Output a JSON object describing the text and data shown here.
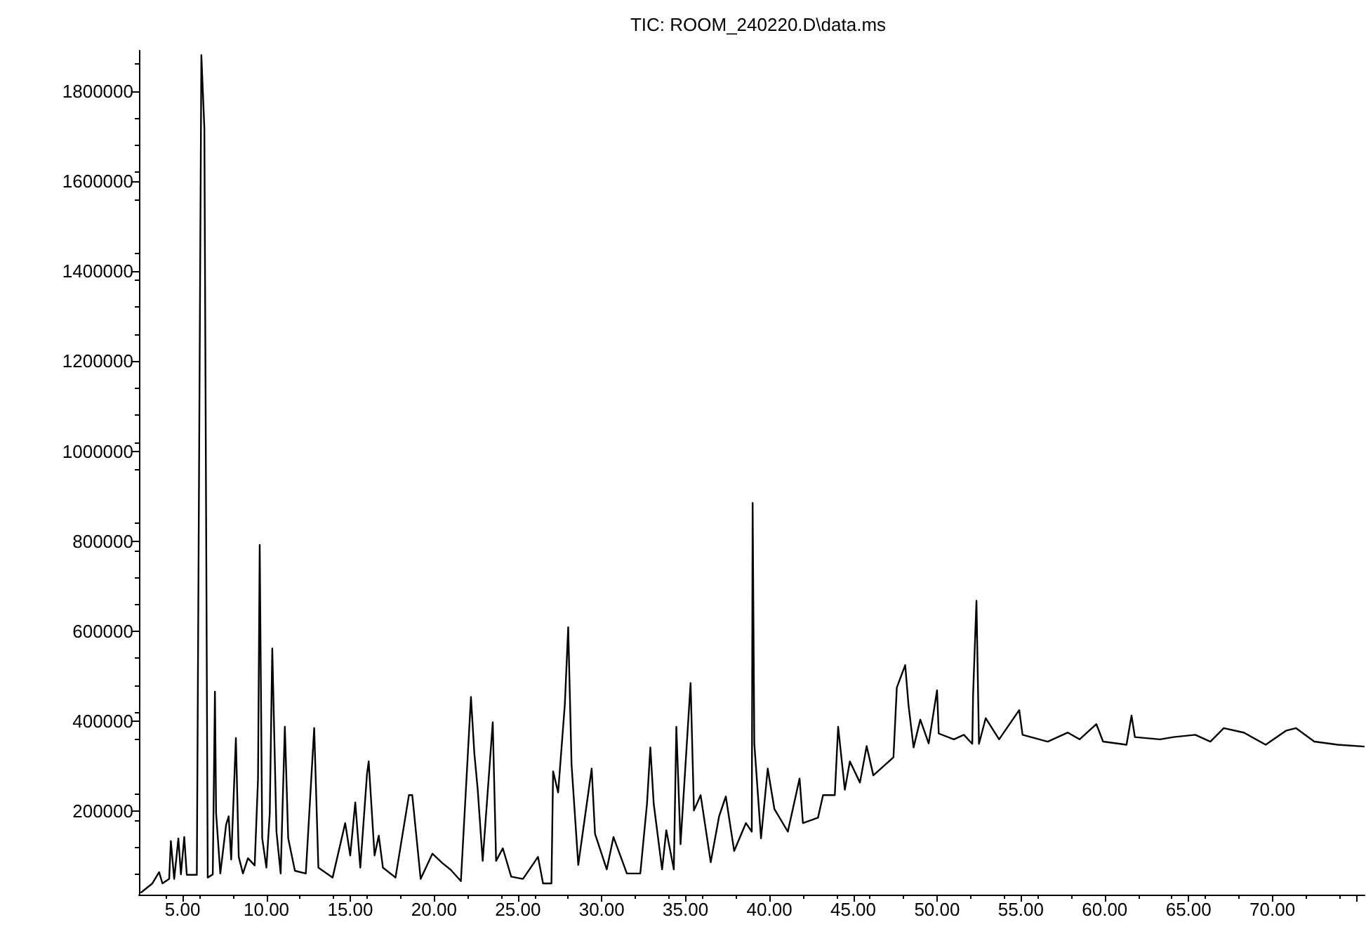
{
  "chart_data": {
    "type": "line",
    "title": "TIC: ROOM_240220.D\\data.ms",
    "marker": "none",
    "xlim": [
      2.4,
      75.5
    ],
    "xticks": [
      {
        "value": 5,
        "label": "5.00"
      },
      {
        "value": 10,
        "label": "10.00"
      },
      {
        "value": 15,
        "label": "15.00"
      },
      {
        "value": 20,
        "label": "20.00"
      },
      {
        "value": 25,
        "label": "25.00"
      },
      {
        "value": 30,
        "label": "30.00"
      },
      {
        "value": 35,
        "label": "35.00"
      },
      {
        "value": 40,
        "label": "40.00"
      },
      {
        "value": 45,
        "label": "45.00"
      },
      {
        "value": 50,
        "label": "50.00"
      },
      {
        "value": 55,
        "label": "55.00"
      },
      {
        "value": 60,
        "label": "60.00"
      },
      {
        "value": 65,
        "label": "65.00"
      },
      {
        "value": 70,
        "label": "70.00"
      },
      {
        "value": 75,
        "label": null
      }
    ],
    "ylim": [
      15000,
      1890000
    ],
    "yticks": [
      200000,
      400000,
      600000,
      800000,
      1000000,
      1200000,
      1400000,
      1600000,
      1800000
    ],
    "series": [
      {
        "color": "#000000",
        "x": [
          2.5,
          3.2,
          3.6,
          3.8,
          4.2,
          4.3,
          4.5,
          4.75,
          4.9,
          5.1,
          5.25,
          5.85,
          6.12,
          6.3,
          6.5,
          6.8,
          6.93,
          7.0,
          7.25,
          7.6,
          7.75,
          7.9,
          8.18,
          8.35,
          8.6,
          8.9,
          9.3,
          9.5,
          9.6,
          9.75,
          10.0,
          10.2,
          10.35,
          10.6,
          10.85,
          11.1,
          11.3,
          11.7,
          12.35,
          12.85,
          13.1,
          13.95,
          14.7,
          15.0,
          15.3,
          15.6,
          16.0,
          16.1,
          16.45,
          16.7,
          16.95,
          17.7,
          18.5,
          18.7,
          19.2,
          19.9,
          20.5,
          21.0,
          21.6,
          22.2,
          22.4,
          22.6,
          22.9,
          23.5,
          23.7,
          24.1,
          24.6,
          25.3,
          26.2,
          26.5,
          27.0,
          27.1,
          27.4,
          27.8,
          28.0,
          28.2,
          28.6,
          29.4,
          29.6,
          30.3,
          30.7,
          31.5,
          32.3,
          32.7,
          32.9,
          33.1,
          33.6,
          33.85,
          34.3,
          34.45,
          34.7,
          35.3,
          35.5,
          35.9,
          36.5,
          37.0,
          37.4,
          37.9,
          38.6,
          38.95,
          39.0,
          39.1,
          39.5,
          39.9,
          40.3,
          41.1,
          41.8,
          42.0,
          42.9,
          43.2,
          43.9,
          44.1,
          44.5,
          44.8,
          45.4,
          45.8,
          46.2,
          47.4,
          47.6,
          48.1,
          48.3,
          48.6,
          49.0,
          49.5,
          50.0,
          50.1,
          51.0,
          51.6,
          52.1,
          52.15,
          52.35,
          52.5,
          52.9,
          53.7,
          54.9,
          55.1,
          56.6,
          57.8,
          58.5,
          59.5,
          59.9,
          61.3,
          61.6,
          61.8,
          63.3,
          64.1,
          65.4,
          66.3,
          67.1,
          68.3,
          69.6,
          70.8,
          71.4,
          72.5,
          73.9,
          75.5
        ],
        "values": [
          19000,
          40000,
          65000,
          40000,
          50000,
          134000,
          50000,
          140000,
          60000,
          143000,
          59000,
          59000,
          1880000,
          1717000,
          53000,
          60000,
          466000,
          196000,
          62000,
          171000,
          189000,
          93000,
          363000,
          99000,
          62000,
          96000,
          80000,
          273000,
          792000,
          140000,
          75000,
          196000,
          562000,
          155000,
          62000,
          388000,
          140000,
          68000,
          62000,
          385000,
          75000,
          53000,
          174000,
          102000,
          220000,
          75000,
          283000,
          311000,
          102000,
          146000,
          75000,
          53000,
          236000,
          236000,
          50000,
          106000,
          85000,
          70000,
          45000,
          454000,
          330000,
          250000,
          90000,
          398000,
          90000,
          118000,
          55000,
          50000,
          99000,
          40000,
          40000,
          289000,
          242000,
          438000,
          609000,
          304000,
          81000,
          295000,
          150000,
          71000,
          143000,
          62000,
          62000,
          217000,
          342000,
          217000,
          71000,
          158000,
          71000,
          388000,
          127000,
          485000,
          202000,
          236000,
          87000,
          189000,
          233000,
          112000,
          174000,
          155000,
          885000,
          351000,
          140000,
          295000,
          205000,
          155000,
          273000,
          174000,
          186000,
          236000,
          236000,
          388000,
          248000,
          311000,
          264000,
          345000,
          280000,
          320000,
          475000,
          525000,
          435000,
          342000,
          404000,
          351000,
          469000,
          373000,
          360000,
          370000,
          350000,
          460000,
          668000,
          350000,
          407000,
          360000,
          425000,
          370000,
          355000,
          375000,
          360000,
          394000,
          355000,
          348000,
          413000,
          365000,
          360000,
          365000,
          370000,
          355000,
          385000,
          375000,
          348000,
          379000,
          385000,
          355000,
          348000,
          344000
        ]
      }
    ]
  }
}
